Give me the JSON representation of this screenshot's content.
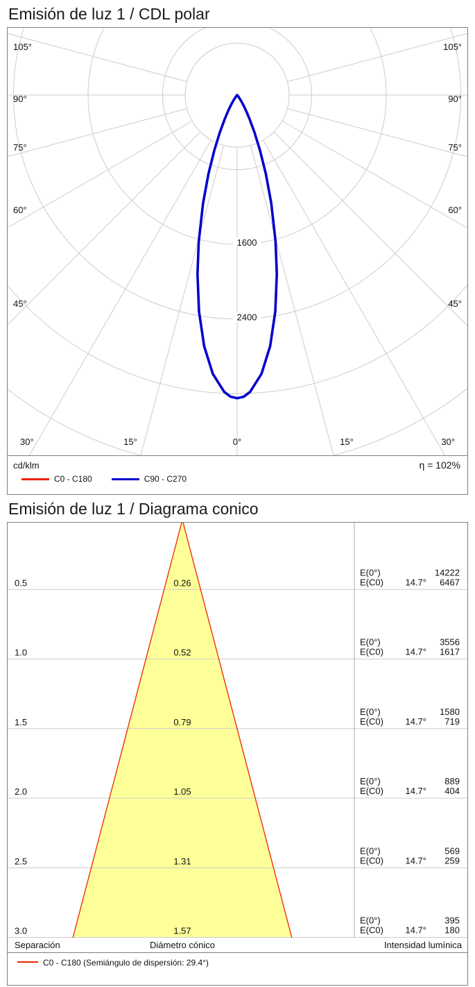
{
  "polar_section": {
    "title": "Emisión de luz 1 / CDL polar",
    "unit_label": "cd/klm",
    "efficiency": "η = 102%",
    "legend": [
      {
        "label": "C0 - C180",
        "color": "#ee2200"
      },
      {
        "label": "C90 - C270",
        "color": "#0000cc"
      }
    ]
  },
  "cone_section": {
    "title": "Emisión de luz 1 / Diagrama conico",
    "footer_labels": {
      "separation": "Separación",
      "diameter": "Diámetro cónico",
      "intensity": "Intensidad lumínica"
    },
    "legend_label": "C0 - C180 (Semiángulo de dispersión: 29.4°)",
    "legend_color": "#ee2200"
  },
  "chart_data": [
    {
      "type": "line",
      "subtype": "polar-intensity-distribution",
      "title": "Emisión de luz 1 / CDL polar",
      "unit": "cd/klm",
      "efficiency_percent": 102,
      "grid_rings_cdklm": [
        800,
        1600,
        2400,
        3200,
        4000
      ],
      "ring_labels": [
        1600,
        2400
      ],
      "angle_labels_left": [
        "105°",
        "90°",
        "75°",
        "60°",
        "45°"
      ],
      "angle_labels_right": [
        "105°",
        "90°",
        "75°",
        "60°",
        "45°"
      ],
      "angle_labels_bottom": [
        "30°",
        "15°",
        "0°",
        "15°",
        "30°"
      ],
      "series": [
        {
          "name": "C0 - C180",
          "color": "#ee2200",
          "profile_gamma_cdklm": [
            [
              0,
              3250
            ],
            [
              1.25,
              3234
            ],
            [
              2.5,
              3185
            ],
            [
              5,
              3000
            ],
            [
              7.5,
              2715
            ],
            [
              10,
              2356
            ],
            [
              12.5,
              1966
            ],
            [
              14.7,
              1625
            ],
            [
              17.5,
              1217
            ],
            [
              20,
              900
            ],
            [
              22.5,
              640
            ],
            [
              25,
              439
            ],
            [
              27.5,
              287
            ],
            [
              30,
              184
            ],
            [
              32.5,
              112
            ],
            [
              35,
              64
            ],
            [
              40,
              19
            ],
            [
              45,
              5
            ],
            [
              60,
              0
            ],
            [
              90,
              0
            ]
          ]
        },
        {
          "name": "C90 - C270",
          "color": "#0000cc",
          "profile_gamma_cdklm": [
            [
              0,
              3250
            ],
            [
              1.25,
              3234
            ],
            [
              2.5,
              3185
            ],
            [
              5,
              3000
            ],
            [
              7.5,
              2715
            ],
            [
              10,
              2356
            ],
            [
              12.5,
              1966
            ],
            [
              14.7,
              1625
            ],
            [
              17.5,
              1217
            ],
            [
              20,
              900
            ],
            [
              22.5,
              640
            ],
            [
              25,
              439
            ],
            [
              27.5,
              287
            ],
            [
              30,
              184
            ],
            [
              32.5,
              112
            ],
            [
              35,
              64
            ],
            [
              40,
              19
            ],
            [
              45,
              5
            ],
            [
              60,
              0
            ],
            [
              90,
              0
            ]
          ]
        }
      ]
    },
    {
      "type": "table",
      "subtype": "cone-diagram",
      "title": "Emisión de luz 1 / Diagrama conico",
      "beam_half_angle_deg": 14.7,
      "dispersion_semiangle_label": "29.4°",
      "cone_fill": "#ffff99",
      "cone_stroke": "#ee2200",
      "labels": {
        "e0": "E(0°)",
        "ec0": "E(C0)"
      },
      "columns": [
        "Separación (m)",
        "Diámetro cónico (m)",
        "E(0°) lx",
        "E(C0) lx"
      ],
      "rows": [
        {
          "separation_m": 0.5,
          "cone_diameter_m": 0.26,
          "e0_lx": 14222,
          "ec0_angle": "14.7°",
          "ec0_lx": 6467
        },
        {
          "separation_m": 1.0,
          "cone_diameter_m": 0.52,
          "e0_lx": 3556,
          "ec0_angle": "14.7°",
          "ec0_lx": 1617
        },
        {
          "separation_m": 1.5,
          "cone_diameter_m": 0.79,
          "e0_lx": 1580,
          "ec0_angle": "14.7°",
          "ec0_lx": 719
        },
        {
          "separation_m": 2.0,
          "cone_diameter_m": 1.05,
          "e0_lx": 889,
          "ec0_angle": "14.7°",
          "ec0_lx": 404
        },
        {
          "separation_m": 2.5,
          "cone_diameter_m": 1.31,
          "e0_lx": 569,
          "ec0_angle": "14.7°",
          "ec0_lx": 259
        },
        {
          "separation_m": 3.0,
          "cone_diameter_m": 1.57,
          "e0_lx": 395,
          "ec0_angle": "14.7°",
          "ec0_lx": 180
        }
      ]
    }
  ]
}
